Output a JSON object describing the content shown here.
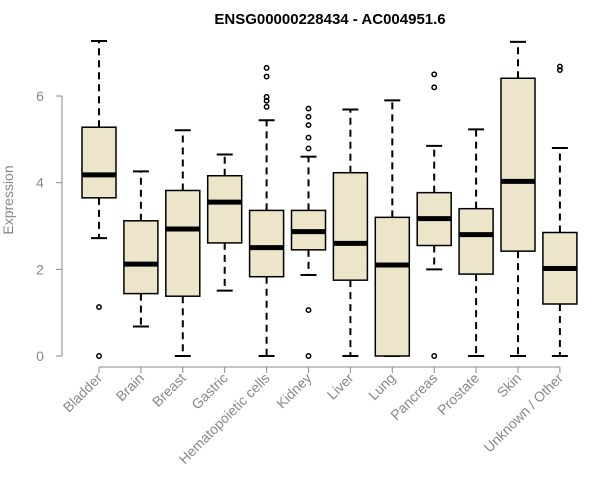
{
  "chart_data": {
    "type": "boxplot",
    "title": "ENSG00000228434 - AC004951.6",
    "ylabel": "Expression",
    "xlabel": "",
    "ylim": [
      0,
      7.3
    ],
    "yticks": [
      0,
      2,
      4,
      6
    ],
    "box_fill": "#ede5c9",
    "box_stroke": "#000000",
    "categories": [
      "Bladder",
      "Brain",
      "Breast",
      "Gastric",
      "Hematopoietic cells",
      "Kidney",
      "Liver",
      "Lung",
      "Pancreas",
      "Prostate",
      "Skin",
      "Unknown / Other"
    ],
    "boxes": [
      {
        "category": "Bladder",
        "whisker_low": 2.72,
        "q1": 3.65,
        "median": 4.18,
        "q3": 5.28,
        "whisker_high": 7.27,
        "outliers": [
          1.13,
          0.0
        ]
      },
      {
        "category": "Brain",
        "whisker_low": 0.68,
        "q1": 1.44,
        "median": 2.12,
        "q3": 3.12,
        "whisker_high": 4.26,
        "outliers": []
      },
      {
        "category": "Breast",
        "whisker_low": 0.0,
        "q1": 1.38,
        "median": 2.93,
        "q3": 3.82,
        "whisker_high": 5.21,
        "outliers": []
      },
      {
        "category": "Gastric",
        "whisker_low": 1.51,
        "q1": 2.61,
        "median": 3.55,
        "q3": 4.16,
        "whisker_high": 4.65,
        "outliers": []
      },
      {
        "category": "Hematopoietic cells",
        "whisker_low": 0.0,
        "q1": 1.83,
        "median": 2.5,
        "q3": 3.36,
        "whisker_high": 5.44,
        "outliers": [
          5.75,
          5.89,
          5.98,
          6.45,
          6.65
        ]
      },
      {
        "category": "Kidney",
        "whisker_low": 1.87,
        "q1": 2.45,
        "median": 2.87,
        "q3": 3.36,
        "whisker_high": 4.6,
        "outliers": [
          4.79,
          5.04,
          5.33,
          5.52,
          5.71,
          1.06,
          0.0
        ]
      },
      {
        "category": "Liver",
        "whisker_low": 0.0,
        "q1": 1.75,
        "median": 2.6,
        "q3": 4.23,
        "whisker_high": 5.69,
        "outliers": []
      },
      {
        "category": "Lung",
        "whisker_low": 0.0,
        "q1": 0.0,
        "median": 2.1,
        "q3": 3.2,
        "whisker_high": 5.9,
        "outliers": []
      },
      {
        "category": "Pancreas",
        "whisker_low": 2.0,
        "q1": 2.55,
        "median": 3.17,
        "q3": 3.77,
        "whisker_high": 4.85,
        "outliers": [
          6.2,
          6.5,
          0.0
        ]
      },
      {
        "category": "Prostate",
        "whisker_low": 0.0,
        "q1": 1.89,
        "median": 2.8,
        "q3": 3.4,
        "whisker_high": 5.23,
        "outliers": []
      },
      {
        "category": "Skin",
        "whisker_low": 0.0,
        "q1": 2.42,
        "median": 4.03,
        "q3": 6.41,
        "whisker_high": 7.25,
        "outliers": []
      },
      {
        "category": "Unknown / Other",
        "whisker_low": 0.0,
        "q1": 1.2,
        "median": 2.02,
        "q3": 2.85,
        "whisker_high": 4.8,
        "outliers": [
          6.6,
          6.68
        ]
      }
    ]
  }
}
